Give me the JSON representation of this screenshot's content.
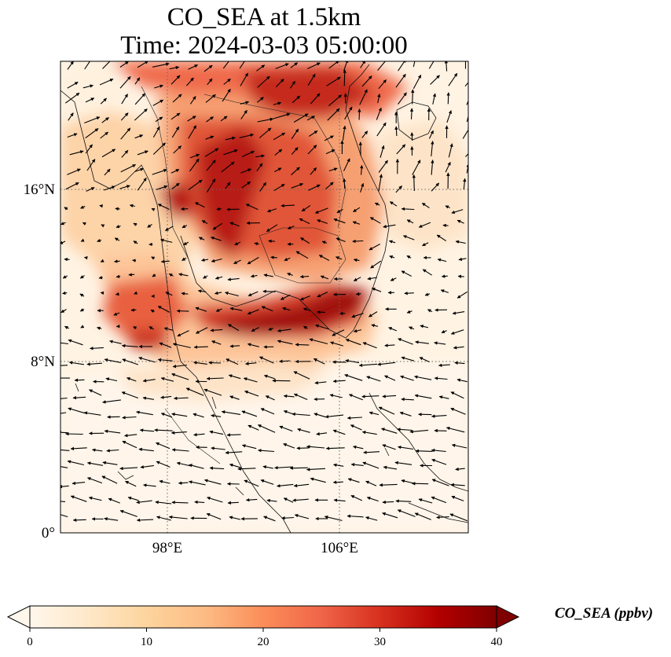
{
  "title": {
    "line1": "CO_SEA at 1.5km",
    "line2": "Time: 2024-03-03 05:00:00"
  },
  "map": {
    "variable": "CO_SEA",
    "level": "1.5km",
    "time": "2024-03-03 05:00:00",
    "lon_range": [
      93,
      112
    ],
    "lat_range": [
      0,
      22
    ],
    "lat_ticks": [
      {
        "value": 16,
        "label": "16°N"
      },
      {
        "value": 8,
        "label": "8°N"
      },
      {
        "value": 0,
        "label": "0°"
      }
    ],
    "lon_ticks": [
      {
        "value": 98,
        "label": "98°E"
      },
      {
        "value": 106,
        "label": "106°E"
      }
    ],
    "gridlines": "dotted"
  },
  "colorbar": {
    "title": "CO_SEA (ppbv)",
    "colormap": "OrRd",
    "min": 0,
    "max": 40,
    "ticks": [
      "0",
      "10",
      "20",
      "30",
      "40"
    ],
    "extend": "both",
    "colors": [
      "#fff7ec",
      "#fee8c8",
      "#fdd49e",
      "#fdbb84",
      "#fc8d59",
      "#ef6548",
      "#d7301f",
      "#b30000",
      "#7f0000"
    ]
  }
}
